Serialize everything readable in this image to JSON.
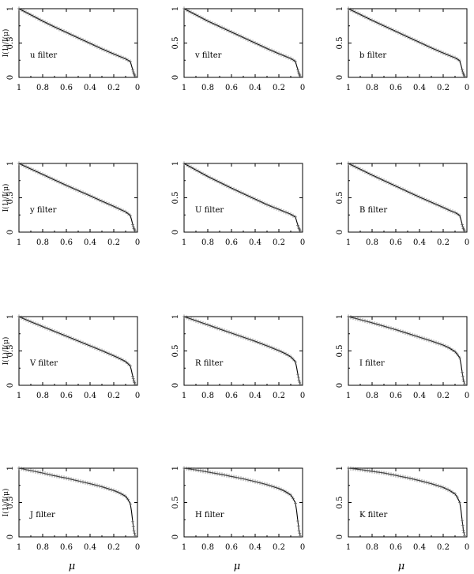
{
  "figure": {
    "y_axis_label": "I(1)/I(μ)",
    "x_axis_label": "μ"
  },
  "chart_data": [
    {
      "type": "line",
      "panel": "u",
      "label": "u filter",
      "xlim": [
        1,
        0
      ],
      "ylim": [
        0,
        1
      ],
      "x_ticks": [
        "1",
        "0.8",
        "0.6",
        "0.4",
        "0.2",
        "0"
      ],
      "y_ticks": [
        "0",
        "0.5",
        "1"
      ],
      "x": [
        1.0,
        0.9,
        0.8,
        0.7,
        0.6,
        0.5,
        0.4,
        0.3,
        0.2,
        0.15,
        0.1,
        0.08,
        0.06,
        0.05,
        0.04,
        0.03,
        0.02
      ],
      "y": [
        1.0,
        0.91,
        0.82,
        0.735,
        0.655,
        0.575,
        0.495,
        0.415,
        0.34,
        0.305,
        0.27,
        0.25,
        0.23,
        0.17,
        0.11,
        0.05,
        0.02
      ]
    },
    {
      "type": "line",
      "panel": "v",
      "label": "v filter",
      "xlim": [
        1,
        0
      ],
      "ylim": [
        0,
        1
      ],
      "x_ticks": [
        "1",
        "0.8",
        "0.6",
        "0.4",
        "0.2",
        "0"
      ],
      "y_ticks": [
        "0",
        "0.5",
        "1"
      ],
      "x": [
        1.0,
        0.9,
        0.8,
        0.7,
        0.6,
        0.5,
        0.4,
        0.3,
        0.2,
        0.15,
        0.1,
        0.08,
        0.06,
        0.05,
        0.04,
        0.03,
        0.02
      ],
      "y": [
        1.0,
        0.91,
        0.82,
        0.74,
        0.66,
        0.58,
        0.5,
        0.42,
        0.345,
        0.31,
        0.275,
        0.255,
        0.23,
        0.17,
        0.11,
        0.05,
        0.02
      ]
    },
    {
      "type": "line",
      "panel": "b",
      "label": "b filter",
      "xlim": [
        1,
        0
      ],
      "ylim": [
        0,
        1
      ],
      "x_ticks": [
        "1",
        "0.8",
        "0.6",
        "0.4",
        "0.2",
        "0"
      ],
      "y_ticks": [
        "0",
        "0.5",
        "1"
      ],
      "x": [
        1.0,
        0.9,
        0.8,
        0.7,
        0.6,
        0.5,
        0.4,
        0.3,
        0.2,
        0.15,
        0.1,
        0.08,
        0.06,
        0.05,
        0.04,
        0.03,
        0.02
      ],
      "y": [
        1.0,
        0.915,
        0.83,
        0.75,
        0.67,
        0.59,
        0.51,
        0.43,
        0.355,
        0.32,
        0.285,
        0.265,
        0.24,
        0.18,
        0.11,
        0.05,
        0.02
      ]
    },
    {
      "type": "line",
      "panel": "y",
      "label": "y filter",
      "xlim": [
        1,
        0
      ],
      "ylim": [
        0,
        1
      ],
      "x_ticks": [
        "1",
        "0.8",
        "0.6",
        "0.4",
        "0.2",
        "0"
      ],
      "y_ticks": [
        "0",
        "0.5",
        "1"
      ],
      "x": [
        1.0,
        0.9,
        0.8,
        0.7,
        0.6,
        0.5,
        0.4,
        0.3,
        0.2,
        0.15,
        0.1,
        0.08,
        0.06,
        0.05,
        0.04,
        0.03,
        0.02
      ],
      "y": [
        1.0,
        0.92,
        0.84,
        0.76,
        0.68,
        0.605,
        0.53,
        0.45,
        0.375,
        0.335,
        0.295,
        0.27,
        0.24,
        0.18,
        0.11,
        0.05,
        0.02
      ]
    },
    {
      "type": "line",
      "panel": "U",
      "label": "U filter",
      "xlim": [
        1,
        0
      ],
      "ylim": [
        0,
        1
      ],
      "x_ticks": [
        "1",
        "0.8",
        "0.6",
        "0.4",
        "0.2",
        "0"
      ],
      "y_ticks": [
        "0",
        "0.5",
        "1"
      ],
      "x": [
        1.0,
        0.9,
        0.8,
        0.7,
        0.6,
        0.5,
        0.4,
        0.3,
        0.2,
        0.15,
        0.1,
        0.08,
        0.06,
        0.05,
        0.04,
        0.03,
        0.02
      ],
      "y": [
        1.0,
        0.905,
        0.81,
        0.725,
        0.64,
        0.56,
        0.48,
        0.4,
        0.33,
        0.295,
        0.26,
        0.24,
        0.22,
        0.16,
        0.1,
        0.05,
        0.02
      ]
    },
    {
      "type": "line",
      "panel": "B",
      "label": "B filter",
      "xlim": [
        1,
        0
      ],
      "ylim": [
        0,
        1
      ],
      "x_ticks": [
        "1",
        "0.8",
        "0.6",
        "0.4",
        "0.2",
        "0"
      ],
      "y_ticks": [
        "0",
        "0.5",
        "1"
      ],
      "x": [
        1.0,
        0.9,
        0.8,
        0.7,
        0.6,
        0.5,
        0.4,
        0.3,
        0.2,
        0.15,
        0.1,
        0.08,
        0.06,
        0.05,
        0.04,
        0.03,
        0.02
      ],
      "y": [
        1.0,
        0.915,
        0.83,
        0.75,
        0.67,
        0.59,
        0.51,
        0.435,
        0.36,
        0.32,
        0.285,
        0.265,
        0.24,
        0.18,
        0.11,
        0.05,
        0.02
      ]
    },
    {
      "type": "line",
      "panel": "V",
      "label": "V filter",
      "xlim": [
        1,
        0
      ],
      "ylim": [
        0,
        1
      ],
      "x_ticks": [
        "1",
        "0.8",
        "0.6",
        "0.4",
        "0.2",
        "0"
      ],
      "y_ticks": [
        "0",
        "0.5",
        "1"
      ],
      "x": [
        1.0,
        0.9,
        0.8,
        0.7,
        0.6,
        0.5,
        0.4,
        0.3,
        0.2,
        0.15,
        0.1,
        0.08,
        0.06,
        0.05,
        0.04,
        0.03,
        0.02
      ],
      "y": [
        1.0,
        0.925,
        0.855,
        0.785,
        0.715,
        0.645,
        0.575,
        0.505,
        0.43,
        0.39,
        0.345,
        0.315,
        0.28,
        0.21,
        0.13,
        0.06,
        0.02
      ]
    },
    {
      "type": "line",
      "panel": "R",
      "label": "R filter",
      "xlim": [
        1,
        0
      ],
      "ylim": [
        0,
        1
      ],
      "x_ticks": [
        "1",
        "0.8",
        "0.6",
        "0.4",
        "0.2",
        "0"
      ],
      "y_ticks": [
        "0",
        "0.5",
        "1"
      ],
      "x": [
        1.0,
        0.9,
        0.8,
        0.7,
        0.6,
        0.5,
        0.4,
        0.3,
        0.2,
        0.15,
        0.1,
        0.08,
        0.06,
        0.05,
        0.04,
        0.03,
        0.02
      ],
      "y": [
        1.0,
        0.94,
        0.88,
        0.82,
        0.76,
        0.7,
        0.64,
        0.575,
        0.505,
        0.465,
        0.415,
        0.38,
        0.34,
        0.26,
        0.16,
        0.07,
        0.02
      ]
    },
    {
      "type": "line",
      "panel": "I",
      "label": "I filter",
      "xlim": [
        1,
        0
      ],
      "ylim": [
        0,
        1
      ],
      "x_ticks": [
        "1",
        "0.8",
        "0.6",
        "0.4",
        "0.2",
        "0"
      ],
      "y_ticks": [
        "0",
        "0.5",
        "1"
      ],
      "x": [
        1.0,
        0.9,
        0.8,
        0.7,
        0.6,
        0.5,
        0.4,
        0.3,
        0.2,
        0.15,
        0.1,
        0.08,
        0.06,
        0.05,
        0.04,
        0.03,
        0.02
      ],
      "y": [
        1.0,
        0.955,
        0.91,
        0.86,
        0.81,
        0.755,
        0.7,
        0.645,
        0.585,
        0.545,
        0.49,
        0.45,
        0.4,
        0.31,
        0.19,
        0.08,
        0.02
      ]
    },
    {
      "type": "line",
      "panel": "J",
      "label": "J filter",
      "xlim": [
        1,
        0
      ],
      "ylim": [
        0,
        1
      ],
      "x_ticks": [
        "1",
        "0.8",
        "0.6",
        "0.4",
        "0.2",
        "0"
      ],
      "y_ticks": [
        "0",
        "0.5",
        "1"
      ],
      "x": [
        1.0,
        0.9,
        0.8,
        0.7,
        0.6,
        0.5,
        0.4,
        0.3,
        0.2,
        0.15,
        0.1,
        0.08,
        0.06,
        0.05,
        0.04,
        0.03,
        0.02
      ],
      "y": [
        1.0,
        0.965,
        0.93,
        0.89,
        0.855,
        0.815,
        0.775,
        0.73,
        0.675,
        0.64,
        0.59,
        0.545,
        0.48,
        0.37,
        0.22,
        0.09,
        0.02
      ]
    },
    {
      "type": "line",
      "panel": "H",
      "label": "H filter",
      "xlim": [
        1,
        0
      ],
      "ylim": [
        0,
        1
      ],
      "x_ticks": [
        "1",
        "0.8",
        "0.6",
        "0.4",
        "0.2",
        "0"
      ],
      "y_ticks": [
        "0",
        "0.5",
        "1"
      ],
      "x": [
        1.0,
        0.9,
        0.8,
        0.7,
        0.6,
        0.5,
        0.4,
        0.3,
        0.2,
        0.15,
        0.1,
        0.08,
        0.06,
        0.05,
        0.04,
        0.03,
        0.02
      ],
      "y": [
        1.0,
        0.975,
        0.945,
        0.915,
        0.88,
        0.845,
        0.805,
        0.76,
        0.705,
        0.665,
        0.61,
        0.56,
        0.49,
        0.38,
        0.23,
        0.09,
        0.02
      ]
    },
    {
      "type": "line",
      "panel": "K",
      "label": "K filter",
      "xlim": [
        1,
        0
      ],
      "ylim": [
        0,
        1
      ],
      "x_ticks": [
        "1",
        "0.8",
        "0.6",
        "0.4",
        "0.2",
        "0"
      ],
      "y_ticks": [
        "0",
        "0.5",
        "1"
      ],
      "x": [
        1.0,
        0.9,
        0.8,
        0.7,
        0.6,
        0.5,
        0.4,
        0.3,
        0.2,
        0.15,
        0.1,
        0.08,
        0.06,
        0.05,
        0.04,
        0.03,
        0.02
      ],
      "y": [
        1.0,
        0.98,
        0.955,
        0.93,
        0.895,
        0.86,
        0.82,
        0.775,
        0.72,
        0.68,
        0.625,
        0.575,
        0.5,
        0.39,
        0.24,
        0.1,
        0.02
      ]
    }
  ]
}
